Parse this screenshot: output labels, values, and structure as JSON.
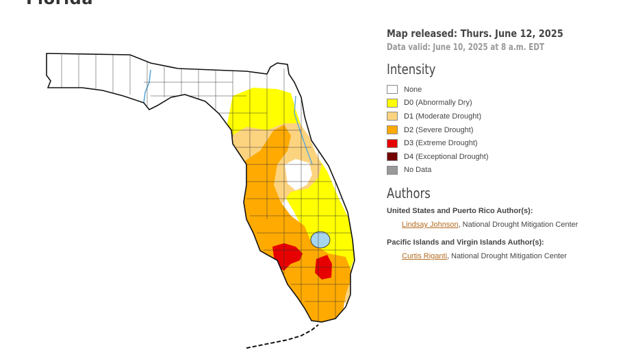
{
  "page": {
    "title": "Florida"
  },
  "info": {
    "released": "Map released: Thurs. June 12, 2025",
    "valid": "Data valid: June 10, 2025 at 8 a.m. EDT"
  },
  "intensity": {
    "heading": "Intensity",
    "items": [
      {
        "code": "",
        "label": "None",
        "color": "#ffffff"
      },
      {
        "code": "D0",
        "label": "(Abnormally Dry)",
        "color": "#ffff00"
      },
      {
        "code": "D1",
        "label": "(Moderate Drought)",
        "color": "#fcd37f"
      },
      {
        "code": "D2",
        "label": "(Severe Drought)",
        "color": "#ffaa00"
      },
      {
        "code": "D3",
        "label": "(Extreme Drought)",
        "color": "#e60000"
      },
      {
        "code": "D4",
        "label": "(Exceptional Drought)",
        "color": "#730000"
      },
      {
        "code": "",
        "label": "No Data",
        "color": "#999999"
      }
    ]
  },
  "authors": {
    "heading": "Authors",
    "groups": [
      {
        "title": "United States and Puerto Rico Author(s):",
        "name": "Lindsay Johnson",
        "org": ", National Drought Mitigation Center"
      },
      {
        "title": "Pacific Islands and Virgin Islands Author(s):",
        "name": "Curtis Riganti",
        "org": ", National Drought Mitigation Center"
      }
    ]
  },
  "map_colors": {
    "none": "#ffffff",
    "d0": "#ffff00",
    "d1": "#fcd37f",
    "d2": "#ffaa00",
    "d3": "#e60000",
    "water": "#a6d5ef"
  }
}
